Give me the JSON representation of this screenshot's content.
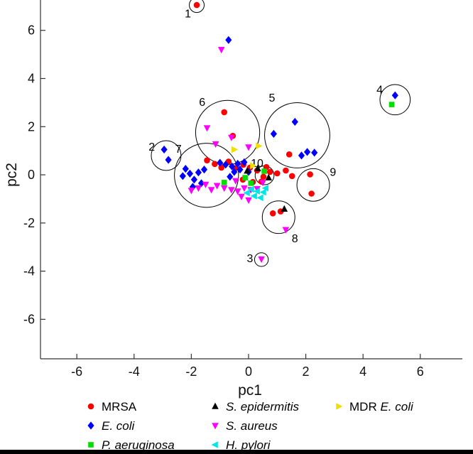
{
  "chart_data": {
    "type": "scatter",
    "title": "",
    "xlabel": "pc1",
    "ylabel": "pc2",
    "xlim": [
      -7.27,
      7.47
    ],
    "ylim": [
      -7.64,
      7.26
    ],
    "xticks": [
      -6,
      -4,
      -2,
      0,
      2,
      4,
      6
    ],
    "yticks": [
      -6,
      -4,
      -2,
      0,
      2,
      4,
      6
    ],
    "grid": false,
    "legend_position": "below",
    "series": [
      {
        "name": "MRSA",
        "label": "MRSA",
        "italic": false,
        "marker": "circle",
        "color": "#ff0000",
        "points": [
          [
            -1.81,
            7.05
          ],
          [
            -0.85,
            2.6
          ],
          [
            -0.55,
            1.62
          ],
          [
            1.42,
            0.85
          ],
          [
            -1.45,
            0.6
          ],
          [
            -1.18,
            0.45
          ],
          [
            -0.95,
            0.3
          ],
          [
            -0.7,
            0.55
          ],
          [
            -0.45,
            0.28
          ],
          [
            -0.18,
            0.42
          ],
          [
            0.05,
            0.3
          ],
          [
            0.3,
            0.18
          ],
          [
            0.52,
            -0.08
          ],
          [
            0.75,
            0.12
          ],
          [
            1.0,
            0.06
          ],
          [
            1.3,
            0.18
          ],
          [
            1.52,
            -0.05
          ],
          [
            0.15,
            -0.3
          ],
          [
            0.45,
            -0.28
          ],
          [
            -0.2,
            -0.2
          ],
          [
            0.62,
            0.32
          ],
          [
            2.15,
            0.02
          ],
          [
            2.2,
            -0.78
          ],
          [
            0.85,
            -1.6
          ],
          [
            1.12,
            -1.52
          ]
        ]
      },
      {
        "name": "E. coli",
        "label": "E. coli",
        "italic": true,
        "marker": "diamond",
        "color": "#0000ff",
        "points": [
          [
            -0.7,
            5.6
          ],
          [
            -2.95,
            1.05
          ],
          [
            -2.8,
            0.62
          ],
          [
            5.12,
            3.3
          ],
          [
            0.88,
            1.7
          ],
          [
            1.62,
            2.2
          ],
          [
            2.05,
            0.95
          ],
          [
            1.85,
            0.8
          ],
          [
            2.3,
            0.92
          ],
          [
            -2.2,
            0.25
          ],
          [
            -2.05,
            0.05
          ],
          [
            -1.9,
            -0.2
          ],
          [
            -1.75,
            0.1
          ],
          [
            -1.95,
            -0.5
          ],
          [
            -1.65,
            -0.35
          ],
          [
            -2.3,
            -0.05
          ],
          [
            -1.55,
            0.22
          ],
          [
            -1.0,
            0.5
          ],
          [
            -0.8,
            0.42
          ],
          [
            -0.58,
            0.35
          ],
          [
            -0.38,
            0.46
          ],
          [
            -0.15,
            0.52
          ],
          [
            -0.5,
            0.12
          ],
          [
            -0.3,
            0.22
          ],
          [
            0.0,
            0.12
          ],
          [
            -0.65,
            -0.08
          ]
        ]
      },
      {
        "name": "P. aeruginosa",
        "label": "P. aeruginosa",
        "italic": true,
        "marker": "square",
        "color": "#00dd00",
        "points": [
          [
            5.0,
            2.92
          ],
          [
            -0.85,
            -0.32
          ],
          [
            0.55,
            0.15
          ],
          [
            -0.12,
            -0.12
          ],
          [
            0.08,
            -0.35
          ]
        ]
      },
      {
        "name": "S. epidermitis",
        "label": "S. epidermitis",
        "italic": true,
        "marker": "triangle-up",
        "color": "#000000",
        "points": [
          [
            1.25,
            -1.42
          ],
          [
            0.32,
            0.26
          ],
          [
            -0.05,
            0.16
          ],
          [
            0.7,
            -0.12
          ]
        ]
      },
      {
        "name": "S. aureus",
        "label": "S. aureus",
        "italic": true,
        "marker": "triangle-down",
        "color": "#ff00ff",
        "points": [
          [
            -0.95,
            5.2
          ],
          [
            -1.45,
            1.95
          ],
          [
            -0.6,
            1.55
          ],
          [
            0.0,
            1.15
          ],
          [
            -1.15,
            1.28
          ],
          [
            -2.0,
            -0.65
          ],
          [
            -1.75,
            -0.55
          ],
          [
            -1.5,
            -0.4
          ],
          [
            -1.3,
            -0.62
          ],
          [
            -1.1,
            -0.45
          ],
          [
            0.45,
            -3.5
          ],
          [
            1.3,
            -2.28
          ],
          [
            -0.85,
            -0.55
          ],
          [
            -0.6,
            -0.62
          ],
          [
            -0.38,
            -0.68
          ],
          [
            -0.15,
            -0.55
          ],
          [
            0.08,
            -0.62
          ],
          [
            0.3,
            -0.58
          ],
          [
            -0.25,
            -0.9
          ],
          [
            0.0,
            -1.05
          ],
          [
            0.5,
            -0.32
          ],
          [
            -0.45,
            -0.25
          ]
        ]
      },
      {
        "name": "H. pylori",
        "label": "H. pylori",
        "italic": true,
        "marker": "triangle-left",
        "color": "#00e5e5",
        "points": [
          [
            0.1,
            -0.6
          ],
          [
            0.3,
            -0.68
          ],
          [
            0.52,
            -0.72
          ],
          [
            0.2,
            -0.88
          ],
          [
            0.42,
            -0.95
          ],
          [
            -0.05,
            -0.75
          ],
          [
            0.6,
            -0.55
          ]
        ]
      },
      {
        "name": "MDR E. coli",
        "label": "E. coli",
        "prefix": "MDR ",
        "italic": true,
        "marker": "triangle-right",
        "color": "#f0e000",
        "points": [
          [
            -0.5,
            1.05
          ],
          [
            0.35,
            1.2
          ],
          [
            0.15,
            0.38
          ]
        ]
      }
    ],
    "clusters": [
      {
        "label": "1",
        "x": -1.81,
        "y": 7.05,
        "r": 0.26,
        "lx": -2.12,
        "ly": 6.72
      },
      {
        "label": "2",
        "x": -2.88,
        "y": 0.8,
        "r": 0.52,
        "lx": -3.38,
        "ly": 1.18
      },
      {
        "label": "3",
        "x": 0.45,
        "y": -3.52,
        "r": 0.24,
        "lx": 0.05,
        "ly": -3.45
      },
      {
        "label": "4",
        "x": 5.12,
        "y": 3.12,
        "r": 0.53,
        "lx": 4.58,
        "ly": 3.55
      },
      {
        "label": "5",
        "x": 1.7,
        "y": 1.64,
        "r": 1.14,
        "lx": 0.82,
        "ly": 3.22
      },
      {
        "label": "6",
        "x": -0.73,
        "y": 1.76,
        "r": 1.12,
        "lx": -1.62,
        "ly": 3.04
      },
      {
        "label": "7",
        "x": -1.47,
        "y": -0.02,
        "r": 1.12,
        "lx": -2.45,
        "ly": 1.1
      },
      {
        "label": "8",
        "x": 1.05,
        "y": -1.76,
        "r": 0.57,
        "lx": 1.62,
        "ly": -2.62
      },
      {
        "label": "9",
        "x": 2.26,
        "y": -0.42,
        "r": 0.57,
        "lx": 2.95,
        "ly": 0.14
      },
      {
        "label": "10",
        "x": 0.56,
        "y": -0.02,
        "r": 0.33,
        "lx": 0.3,
        "ly": 0.5
      }
    ],
    "legend": {
      "items": [
        {
          "series": "MRSA",
          "col": 0,
          "row": 0
        },
        {
          "series": "E. coli",
          "col": 0,
          "row": 1
        },
        {
          "series": "P. aeruginosa",
          "col": 0,
          "row": 2
        },
        {
          "series": "S. epidermitis",
          "col": 1,
          "row": 0
        },
        {
          "series": "S. aureus",
          "col": 1,
          "row": 1
        },
        {
          "series": "H. pylori",
          "col": 1,
          "row": 2
        },
        {
          "series": "MDR E. coli",
          "col": 2,
          "row": 0
        }
      ]
    }
  }
}
